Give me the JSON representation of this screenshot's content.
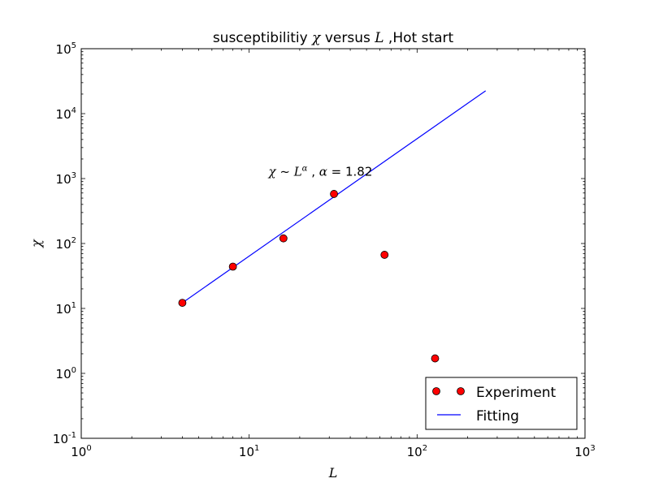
{
  "chart_data": {
    "type": "scatter",
    "title_prefix": "susceptibilitiy ",
    "title_chi": "χ",
    "title_mid": " versus ",
    "title_L": "L",
    "title_suffix": " ,Hot start",
    "xlabel": "L",
    "ylabel": "χ",
    "x_scale": "log",
    "y_scale": "log",
    "xlim": [
      1,
      1000
    ],
    "ylim": [
      0.1,
      100000
    ],
    "grid": false,
    "x_ticks": [
      {
        "value": 1,
        "base": "10",
        "exp": "0"
      },
      {
        "value": 10,
        "base": "10",
        "exp": "1"
      },
      {
        "value": 100,
        "base": "10",
        "exp": "2"
      },
      {
        "value": 1000,
        "base": "10",
        "exp": "3"
      }
    ],
    "y_ticks": [
      {
        "value": 0.1,
        "base": "10",
        "exp": "-1"
      },
      {
        "value": 1,
        "base": "10",
        "exp": "0"
      },
      {
        "value": 10,
        "base": "10",
        "exp": "1"
      },
      {
        "value": 100,
        "base": "10",
        "exp": "2"
      },
      {
        "value": 1000,
        "base": "10",
        "exp": "3"
      },
      {
        "value": 10000,
        "base": "10",
        "exp": "4"
      },
      {
        "value": 100000,
        "base": "10",
        "exp": "5"
      }
    ],
    "series": [
      {
        "name": "Experiment",
        "kind": "markers",
        "color": "#ff0000",
        "edge_color": "#000000",
        "x": [
          4,
          8,
          16,
          32,
          64,
          128
        ],
        "y": [
          12.2,
          44,
          120,
          580,
          67,
          1.7
        ]
      },
      {
        "name": "Fitting",
        "kind": "line",
        "color": "#0000ff",
        "x": [
          4,
          256
        ],
        "y": [
          12.2,
          22500
        ]
      }
    ],
    "annotation": {
      "chi": "χ",
      "tilde": " ~ ",
      "L": "L",
      "alpha_sup": "α",
      "sep": " , ",
      "alpha": "α",
      "equals": " = 1.82",
      "x": 10,
      "y": 1100
    },
    "legend": {
      "placement": "lower-right",
      "entries": [
        "Experiment",
        "Fitting"
      ]
    }
  }
}
